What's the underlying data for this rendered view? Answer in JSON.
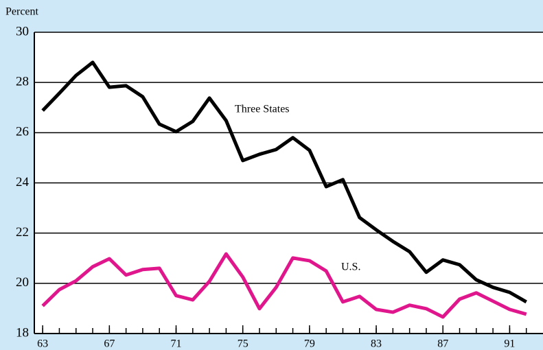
{
  "chart_data": {
    "type": "line",
    "y_label": "Percent",
    "x": [
      63,
      64,
      65,
      66,
      67,
      68,
      69,
      70,
      71,
      72,
      73,
      74,
      75,
      76,
      77,
      78,
      79,
      80,
      81,
      82,
      83,
      84,
      85,
      86,
      87,
      88,
      89,
      90,
      91,
      92
    ],
    "series": [
      {
        "name": "Three States",
        "color": "#000000",
        "values": [
          26.88,
          27.57,
          28.28,
          28.8,
          27.81,
          27.87,
          27.43,
          26.34,
          26.04,
          26.45,
          27.38,
          26.48,
          24.89,
          25.14,
          25.33,
          25.8,
          25.3,
          23.85,
          24.13,
          22.62,
          22.13,
          21.67,
          21.26,
          20.44,
          20.93,
          20.74,
          20.14,
          19.84,
          19.64,
          19.26
        ]
      },
      {
        "name": "U.S.",
        "color": "#e0168c",
        "values": [
          19.1,
          19.75,
          20.1,
          20.66,
          20.98,
          20.33,
          20.55,
          20.6,
          19.51,
          19.34,
          20.08,
          21.17,
          20.25,
          18.99,
          19.84,
          21.01,
          20.9,
          20.49,
          19.26,
          19.48,
          18.96,
          18.85,
          19.13,
          18.99,
          18.66,
          19.37,
          19.62,
          19.29,
          18.96,
          18.77
        ]
      }
    ],
    "xlim": [
      62.5,
      93
    ],
    "ylim": [
      18,
      30
    ],
    "xticks": [
      63,
      67,
      71,
      75,
      79,
      83,
      87,
      91
    ],
    "yticks": [
      18,
      20,
      22,
      24,
      26,
      28,
      30
    ],
    "grid": true
  }
}
